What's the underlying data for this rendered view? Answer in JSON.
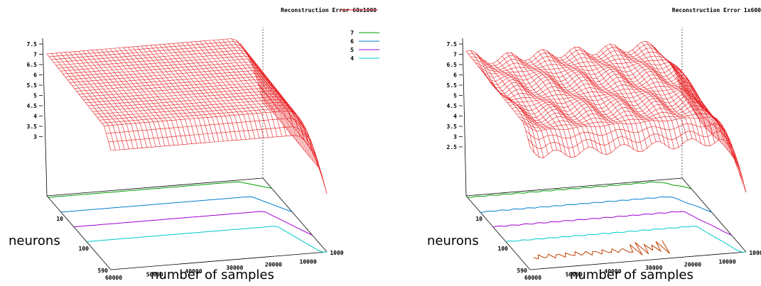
{
  "chart_data": [
    {
      "type": "surface",
      "title": "Reconstruction Error 60x1000",
      "xlabel": "number of samples",
      "ylabel": "neurons",
      "ztick_labels": [
        "7.5",
        "7",
        "6.5",
        "6",
        "5.5",
        "5",
        "4.5",
        "4",
        "3.5",
        "3"
      ],
      "xtick_labels": [
        "60000",
        "50000",
        "40000",
        "30000",
        "20000",
        "10000",
        "1000"
      ],
      "ytick_labels": [
        "10",
        "100",
        "590"
      ],
      "contour_levels": [
        "7",
        "6",
        "5",
        "4"
      ],
      "colors": {
        "surface": "#e8191c",
        "contour_7": "#00a000",
        "contour_6": "#0080d0",
        "contour_5": "#a000d0",
        "contour_4": "#00c8c8",
        "contour_extra": "#c04000"
      },
      "surface_profile_note": "error high at small sample counts, flattening toward large sample counts",
      "z_range": [
        2.5,
        7.5
      ]
    },
    {
      "type": "surface",
      "title": "Reconstruction Error 1x600",
      "xlabel": "number of samples",
      "ylabel": "neurons",
      "ztick_labels": [
        "7.5",
        "7",
        "6.5",
        "6",
        "5.5",
        "5",
        "4.5",
        "4",
        "3.5",
        "3",
        "2.5"
      ],
      "xtick_labels": [
        "60000",
        "50000",
        "40000",
        "30000",
        "20000",
        "10000",
        "1000"
      ],
      "ytick_labels": [
        "10",
        "100",
        "590"
      ],
      "contour_levels": [
        "7",
        "6",
        "5",
        "4"
      ],
      "colors": {
        "surface": "#e8191c",
        "contour_7": "#00a000",
        "contour_6": "#0080d0",
        "contour_5": "#a000d0",
        "contour_4": "#00c8c8",
        "contour_extra": "#c04000"
      },
      "z_range": [
        2.0,
        7.5
      ]
    }
  ]
}
